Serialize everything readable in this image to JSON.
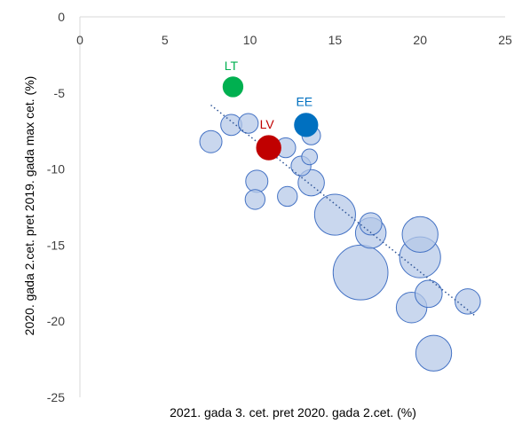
{
  "chart_data": {
    "type": "scatter",
    "title": "",
    "xlabel": "2021. gada 3. cet. pret 2020. gada 2.cet. (%)",
    "ylabel": "2020. gada 2.cet. pret 2019. gada max cet. (%)",
    "xlim": [
      0,
      25
    ],
    "ylim": [
      -25,
      0
    ],
    "xticks": [
      "0",
      "5",
      "10",
      "15",
      "20",
      "25"
    ],
    "yticks": [
      "0",
      "-5",
      "-10",
      "-15",
      "-20",
      "-25"
    ],
    "x_axis_position": "top",
    "grid": false,
    "legend": "none",
    "colors": {
      "bubble_fill": "#b4c7e7",
      "bubble_stroke": "#4472c4",
      "trendline": "#2f5597",
      "LT": "#00b050",
      "LV": "#c00000",
      "EE": "#0070c0"
    },
    "bubbles": [
      {
        "x": 7.7,
        "y": -8.2,
        "size": 1.0
      },
      {
        "x": 8.9,
        "y": -7.1,
        "size": 0.9
      },
      {
        "x": 9.9,
        "y": -7.0,
        "size": 0.8
      },
      {
        "x": 10.4,
        "y": -10.8,
        "size": 1.0
      },
      {
        "x": 10.3,
        "y": -12.0,
        "size": 0.8
      },
      {
        "x": 12.1,
        "y": -8.6,
        "size": 0.8
      },
      {
        "x": 12.2,
        "y": -11.8,
        "size": 0.8
      },
      {
        "x": 13.0,
        "y": -9.8,
        "size": 0.8
      },
      {
        "x": 13.6,
        "y": -7.8,
        "size": 0.7
      },
      {
        "x": 13.5,
        "y": -9.2,
        "size": 0.5
      },
      {
        "x": 13.6,
        "y": -10.9,
        "size": 1.4
      },
      {
        "x": 15.0,
        "y": -13.0,
        "size": 3.4
      },
      {
        "x": 17.1,
        "y": -14.2,
        "size": 1.9
      },
      {
        "x": 17.1,
        "y": -13.6,
        "size": 1.0
      },
      {
        "x": 16.5,
        "y": -16.8,
        "size": 6.1
      },
      {
        "x": 20.0,
        "y": -14.3,
        "size": 2.6
      },
      {
        "x": 20.0,
        "y": -15.8,
        "size": 3.4
      },
      {
        "x": 20.5,
        "y": -18.2,
        "size": 1.5
      },
      {
        "x": 19.5,
        "y": -19.1,
        "size": 1.9
      },
      {
        "x": 22.8,
        "y": -18.7,
        "size": 1.3
      },
      {
        "x": 20.8,
        "y": -22.1,
        "size": 2.6
      }
    ],
    "highlighted": [
      {
        "label": "LT",
        "x": 9.0,
        "y": -4.6,
        "size": 0.8
      },
      {
        "label": "LV",
        "x": 11.1,
        "y": -8.6,
        "size": 1.2
      },
      {
        "label": "EE",
        "x": 13.3,
        "y": -7.1,
        "size": 1.1
      }
    ],
    "trendline": {
      "style": "dotted",
      "from": [
        7.7,
        -5.8
      ],
      "to": [
        23.3,
        -19.7
      ]
    }
  }
}
